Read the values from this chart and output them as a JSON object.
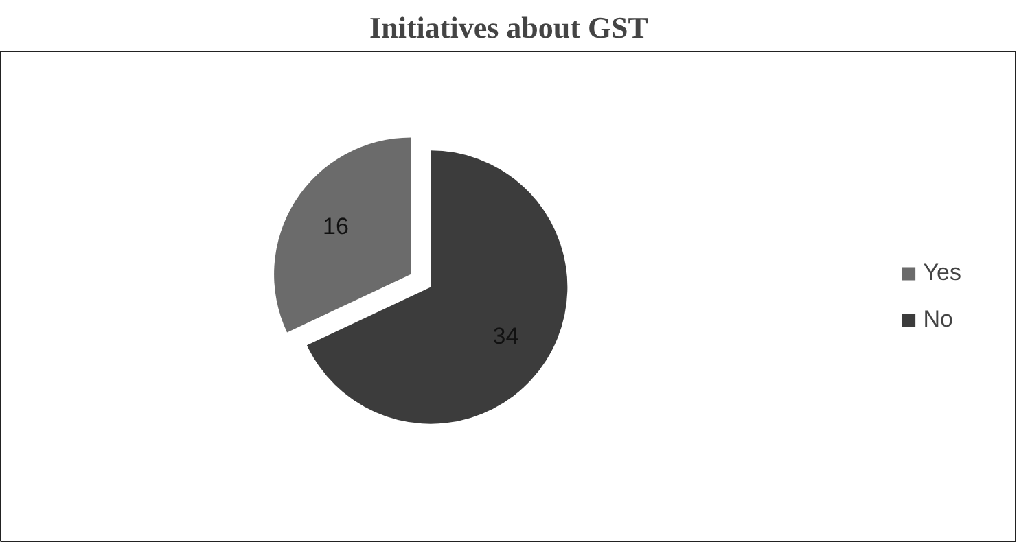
{
  "chart_data": {
    "type": "pie",
    "title": "Initiatives about GST",
    "categories": [
      "Yes",
      "No"
    ],
    "values": [
      16,
      34
    ],
    "colors": [
      "#6b6b6b",
      "#3c3c3c"
    ],
    "data_labels": true,
    "legend": "right"
  }
}
